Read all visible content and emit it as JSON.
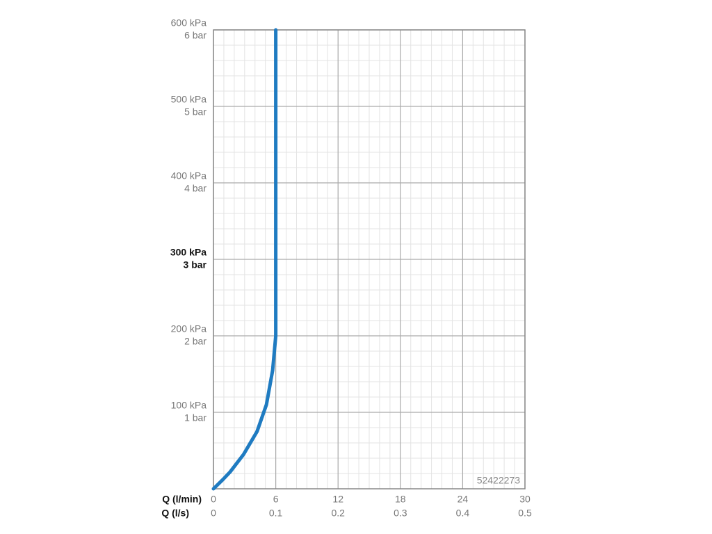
{
  "chart_data": {
    "type": "line",
    "xlabel": "Q (l/min)",
    "x2label": "Q (l/s)",
    "xlim": [
      0,
      30
    ],
    "xticks": [
      0,
      6,
      12,
      18,
      24,
      30
    ],
    "x2lim": [
      0,
      0.5
    ],
    "x2ticks": [
      0,
      0.1,
      0.2,
      0.3,
      0.4,
      0.5
    ],
    "ylim": [
      0,
      600
    ],
    "yticks": [
      {
        "value": 100,
        "label": "100 kPa"
      },
      {
        "value": 200,
        "label": "200 kPa"
      },
      {
        "value": 300,
        "label": "300 kPa"
      },
      {
        "value": 400,
        "label": "400 kPa"
      },
      {
        "value": 500,
        "label": "500 kPa"
      },
      {
        "value": 600,
        "label": "600 kPa"
      }
    ],
    "yticks_bar": [
      {
        "value": 100,
        "label": "1 bar"
      },
      {
        "value": 200,
        "label": "2 bar"
      },
      {
        "value": 300,
        "label": "3 bar"
      },
      {
        "value": 400,
        "label": "4 bar"
      },
      {
        "value": 500,
        "label": "5 bar"
      },
      {
        "value": 600,
        "label": "6 bar"
      }
    ],
    "highlight_ytick": 300,
    "grid": true,
    "minor_grid": {
      "x": 1,
      "y": 20
    },
    "annotation": "52422273",
    "series": [
      {
        "color": "#1f7bc1",
        "x": [
          0,
          0.9,
          1.6,
          2.9,
          4.2,
          5.1,
          5.7,
          6,
          6
        ],
        "values": [
          0,
          12,
          22,
          45,
          75,
          110,
          155,
          200,
          600
        ]
      }
    ]
  }
}
